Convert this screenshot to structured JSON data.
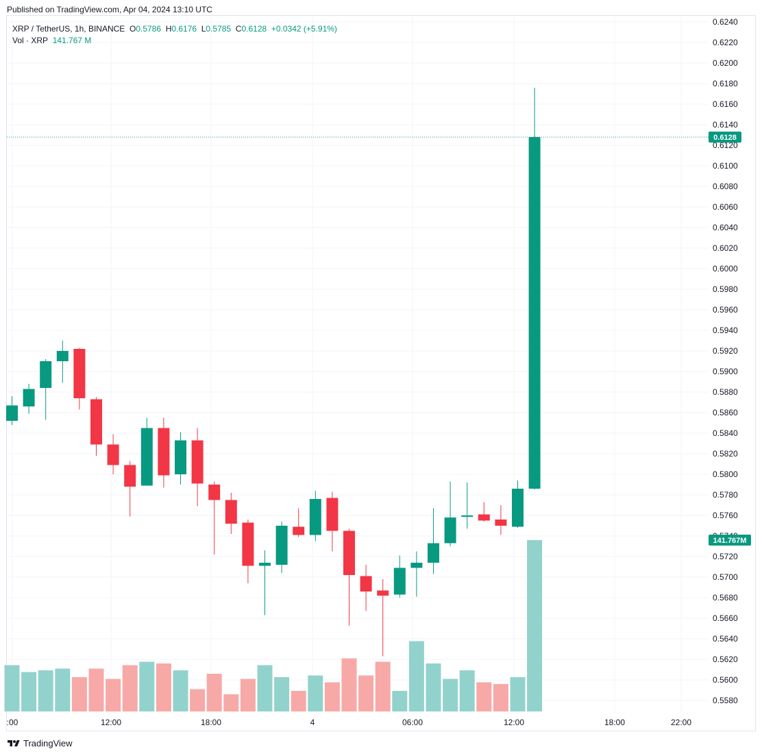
{
  "header": {
    "published": "Published on TradingView.com, Apr 04, 2024 13:10 UTC"
  },
  "legend": {
    "symbol": "XRP / TetherUS, 1h, BINANCE",
    "o_label": "O",
    "o_value": "0.5786",
    "h_label": "H",
    "h_value": "0.6176",
    "l_label": "L",
    "l_value": "0.5785",
    "c_label": "C",
    "c_value": "0.6128",
    "change": "+0.0342 (+5.91%)",
    "vol_label": "Vol · XRP",
    "vol_value": "141.767 M"
  },
  "footer": {
    "brand": "TradingView"
  },
  "colors": {
    "up": "#089981",
    "down": "#f23645",
    "vol_up": "#92d2cc",
    "vol_down": "#f7a9a7",
    "grid": "#f0f3fa",
    "axis_text": "#131722"
  },
  "chart_data": {
    "type": "candlestick",
    "symbol": "XRP / TetherUS",
    "interval": "1h",
    "exchange": "BINANCE",
    "x_tick_labels": [
      ":00",
      "12:00",
      "18:00",
      "4",
      "06:00",
      "12:00",
      "18:00",
      "22:00"
    ],
    "y_tick_labels": [
      "0.6240",
      "0.6220",
      "0.6200",
      "0.6180",
      "0.6160",
      "0.6140",
      "0.6120",
      "0.6100",
      "0.6080",
      "0.6060",
      "0.6040",
      "0.6020",
      "0.6000",
      "0.5980",
      "0.5960",
      "0.5940",
      "0.5920",
      "0.5900",
      "0.5880",
      "0.5860",
      "0.5840",
      "0.5820",
      "0.5800",
      "0.5780",
      "0.5760",
      "0.5740",
      "0.5720",
      "0.5700",
      "0.5680",
      "0.5660",
      "0.5640",
      "0.5620",
      "0.5600",
      "0.5580"
    ],
    "ylim": [
      0.5572,
      0.6248
    ],
    "last_price_label": "0.6128",
    "last_volume_label": "141.767M",
    "grid": true,
    "candles": [
      {
        "o": 0.5852,
        "h": 0.5876,
        "l": 0.5848,
        "c": 0.5867
      },
      {
        "o": 0.5866,
        "h": 0.5888,
        "l": 0.5859,
        "c": 0.5883
      },
      {
        "o": 0.5884,
        "h": 0.5912,
        "l": 0.5853,
        "c": 0.591
      },
      {
        "o": 0.591,
        "h": 0.593,
        "l": 0.5889,
        "c": 0.592
      },
      {
        "o": 0.5922,
        "h": 0.5923,
        "l": 0.5863,
        "c": 0.5874
      },
      {
        "o": 0.5873,
        "h": 0.5875,
        "l": 0.5818,
        "c": 0.5829
      },
      {
        "o": 0.5829,
        "h": 0.5839,
        "l": 0.58,
        "c": 0.5809
      },
      {
        "o": 0.5809,
        "h": 0.5813,
        "l": 0.5759,
        "c": 0.5788
      },
      {
        "o": 0.5789,
        "h": 0.5855,
        "l": 0.5789,
        "c": 0.5845
      },
      {
        "o": 0.5845,
        "h": 0.5855,
        "l": 0.5787,
        "c": 0.5799
      },
      {
        "o": 0.58,
        "h": 0.5841,
        "l": 0.579,
        "c": 0.5833
      },
      {
        "o": 0.5833,
        "h": 0.5845,
        "l": 0.5769,
        "c": 0.5791
      },
      {
        "o": 0.579,
        "h": 0.5793,
        "l": 0.5722,
        "c": 0.5775
      },
      {
        "o": 0.5775,
        "h": 0.5782,
        "l": 0.5742,
        "c": 0.5752
      },
      {
        "o": 0.5753,
        "h": 0.5756,
        "l": 0.5694,
        "c": 0.5711
      },
      {
        "o": 0.5711,
        "h": 0.5726,
        "l": 0.5663,
        "c": 0.5714
      },
      {
        "o": 0.5712,
        "h": 0.5754,
        "l": 0.5704,
        "c": 0.575
      },
      {
        "o": 0.5749,
        "h": 0.5767,
        "l": 0.5739,
        "c": 0.5741
      },
      {
        "o": 0.5741,
        "h": 0.5784,
        "l": 0.5735,
        "c": 0.5776
      },
      {
        "o": 0.5777,
        "h": 0.5783,
        "l": 0.5725,
        "c": 0.5745
      },
      {
        "o": 0.5745,
        "h": 0.5747,
        "l": 0.5653,
        "c": 0.5702
      },
      {
        "o": 0.5701,
        "h": 0.5712,
        "l": 0.5667,
        "c": 0.5686
      },
      {
        "o": 0.5687,
        "h": 0.5698,
        "l": 0.5623,
        "c": 0.5682
      },
      {
        "o": 0.5683,
        "h": 0.5721,
        "l": 0.568,
        "c": 0.5709
      },
      {
        "o": 0.5709,
        "h": 0.5725,
        "l": 0.5681,
        "c": 0.5714
      },
      {
        "o": 0.5714,
        "h": 0.5767,
        "l": 0.5703,
        "c": 0.5733
      },
      {
        "o": 0.5733,
        "h": 0.5793,
        "l": 0.573,
        "c": 0.5758
      },
      {
        "o": 0.5759,
        "h": 0.5792,
        "l": 0.5747,
        "c": 0.576
      },
      {
        "o": 0.5761,
        "h": 0.5773,
        "l": 0.5754,
        "c": 0.5755
      },
      {
        "o": 0.5756,
        "h": 0.577,
        "l": 0.5741,
        "c": 0.575
      },
      {
        "o": 0.5749,
        "h": 0.5794,
        "l": 0.5748,
        "c": 0.5786
      },
      {
        "o": 0.5786,
        "h": 0.6176,
        "l": 0.5785,
        "c": 0.6128
      }
    ],
    "volume": {
      "last_value_millions": 141.767,
      "relative_heights": [
        0.27,
        0.23,
        0.24,
        0.25,
        0.2,
        0.25,
        0.19,
        0.27,
        0.29,
        0.28,
        0.24,
        0.13,
        0.22,
        0.1,
        0.19,
        0.27,
        0.2,
        0.12,
        0.21,
        0.17,
        0.31,
        0.21,
        0.29,
        0.12,
        0.41,
        0.28,
        0.19,
        0.24,
        0.17,
        0.16,
        0.2,
        1.0
      ]
    }
  }
}
